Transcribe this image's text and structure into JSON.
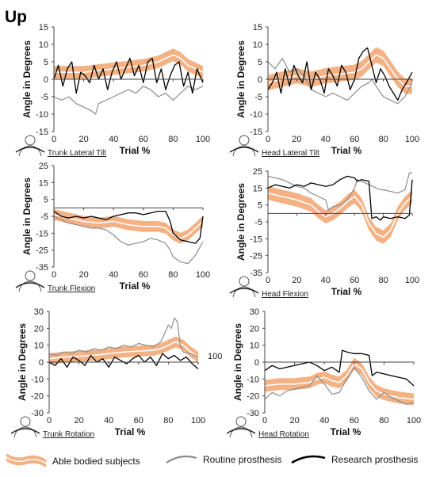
{
  "figure": {
    "title": "Up",
    "legend": [
      {
        "label": "Able bodied subjects",
        "style": "band",
        "color": "#f4b183",
        "center_color": "#ffffff"
      },
      {
        "label": "Routine prosthesis",
        "style": "line",
        "color": "#8c8c8c"
      },
      {
        "label": "Research prosthesis",
        "style": "line",
        "color": "#000000"
      }
    ]
  },
  "chart_data": [
    {
      "type": "line",
      "title": "Trunk Lateral Tilt",
      "xlabel": "Trial %",
      "ylabel": "Angle in Degrees",
      "xlim": [
        0,
        100
      ],
      "ylim": [
        -15,
        15
      ],
      "xticks": [
        0,
        20,
        40,
        60,
        80,
        100
      ],
      "yticks": [
        -15,
        -10,
        -5,
        0,
        5,
        10,
        15
      ],
      "xtick_labels": [
        "0",
        "20",
        "40",
        "60",
        "80",
        "100"
      ],
      "ytick_labels": [
        "-15",
        "-10",
        "-5",
        "0",
        "5",
        "10",
        "15"
      ],
      "grid": false,
      "icon": "trunk-tilt-icon",
      "band": {
        "x": [
          0,
          10,
          20,
          30,
          40,
          50,
          60,
          70,
          75,
          80,
          85,
          90,
          95,
          100
        ],
        "mean": [
          2,
          2,
          2,
          2.5,
          3,
          3.5,
          4,
          5,
          6,
          7,
          6,
          4,
          3,
          2
        ],
        "halfwidth": 1.8
      },
      "series": [
        {
          "name": "Routine prosthesis",
          "color": "#8c8c8c",
          "x": [
            0,
            5,
            10,
            15,
            20,
            25,
            28,
            30,
            35,
            40,
            45,
            50,
            55,
            60,
            65,
            70,
            75,
            80,
            85,
            90,
            95,
            100
          ],
          "y": [
            -5,
            -6,
            -5,
            -7,
            -8,
            -9,
            -10,
            -7,
            -6,
            -5,
            -4,
            -3,
            -4,
            -2,
            -3,
            -5,
            -4,
            -6,
            -4,
            -2,
            -3,
            -2
          ]
        },
        {
          "name": "Research prosthesis",
          "color": "#000000",
          "x": [
            0,
            3,
            6,
            9,
            12,
            15,
            18,
            21,
            24,
            27,
            30,
            33,
            36,
            39,
            42,
            45,
            48,
            51,
            54,
            57,
            60,
            63,
            66,
            69,
            72,
            75,
            78,
            81,
            84,
            87,
            90,
            93,
            96,
            100
          ],
          "y": [
            0,
            4,
            -2,
            3,
            5,
            -4,
            2,
            1,
            -1,
            4,
            0,
            3,
            -3,
            2,
            5,
            0,
            3,
            6,
            1,
            4,
            -1,
            5,
            6,
            -1,
            3,
            -3,
            1,
            4,
            5,
            -2,
            2,
            -4,
            3,
            -1
          ]
        }
      ]
    },
    {
      "type": "line",
      "title": "Head Lateral Tilt",
      "xlabel": "Trial %",
      "ylabel": "Angle in Degrees",
      "xlim": [
        0,
        100
      ],
      "ylim": [
        -15,
        15
      ],
      "xticks": [
        0,
        20,
        40,
        60,
        80,
        100
      ],
      "yticks": [
        -15,
        -10,
        -5,
        0,
        5,
        10,
        15
      ],
      "xtick_labels": [
        "0",
        "20",
        "40",
        "60",
        "80",
        "100"
      ],
      "ytick_labels": [
        "-15",
        "-10",
        "-5",
        "0",
        "5",
        "10",
        "15"
      ],
      "grid": false,
      "icon": "head-tilt-icon",
      "band": {
        "x": [
          0,
          10,
          20,
          30,
          40,
          50,
          60,
          65,
          70,
          75,
          80,
          85,
          90,
          95,
          100
        ],
        "mean": [
          -1,
          0,
          1,
          0,
          1,
          1.5,
          2,
          3,
          5,
          7,
          6,
          3,
          0,
          -2,
          -2
        ],
        "halfwidth": 2.2
      },
      "series": [
        {
          "name": "Routine prosthesis",
          "color": "#8c8c8c",
          "x": [
            0,
            5,
            10,
            15,
            20,
            25,
            30,
            35,
            40,
            45,
            50,
            55,
            60,
            65,
            70,
            72,
            75,
            80,
            85,
            90,
            95,
            100
          ],
          "y": [
            5,
            3,
            6,
            2,
            3,
            1,
            -3,
            -4,
            -5,
            -4,
            -5,
            -6,
            -4,
            -2,
            -1,
            0,
            -2,
            -5,
            -6,
            -7,
            -5,
            -1
          ]
        },
        {
          "name": "Research prosthesis",
          "color": "#000000",
          "x": [
            0,
            3,
            6,
            9,
            12,
            15,
            18,
            21,
            24,
            27,
            30,
            33,
            36,
            39,
            42,
            45,
            48,
            51,
            54,
            57,
            60,
            63,
            66,
            69,
            72,
            75,
            78,
            81,
            84,
            87,
            90,
            93,
            96,
            100
          ],
          "y": [
            -3,
            -1,
            2,
            -4,
            3,
            -2,
            4,
            1,
            -1,
            5,
            -3,
            2,
            0,
            -4,
            3,
            1,
            -2,
            4,
            2,
            -3,
            0,
            6,
            8,
            9,
            4,
            -1,
            3,
            1,
            -2,
            -4,
            -6,
            -3,
            -1,
            2
          ]
        }
      ]
    },
    {
      "type": "line",
      "title": "Trunk Flexion",
      "xlabel": "Trial %",
      "ylabel": "Angle in Degrees",
      "xlim": [
        0,
        100
      ],
      "ylim": [
        -35,
        25
      ],
      "xticks": [
        0,
        20,
        40,
        60,
        80,
        100
      ],
      "yticks": [
        -35,
        -25,
        -15,
        -5,
        5,
        15,
        25
      ],
      "xtick_labels": [
        "0",
        "20",
        "40",
        "60",
        "80",
        "100"
      ],
      "ytick_labels": [
        "-35",
        "-25",
        "-15",
        "-5",
        "5",
        "15",
        "25"
      ],
      "grid": false,
      "icon": "trunk-flexion-icon",
      "band": {
        "x": [
          0,
          10,
          20,
          30,
          40,
          50,
          60,
          70,
          75,
          80,
          85,
          90,
          95,
          100
        ],
        "mean": [
          -4,
          -6,
          -8,
          -9,
          -8,
          -10,
          -11,
          -11,
          -12,
          -16,
          -18,
          -16,
          -12,
          -8
        ],
        "halfwidth": 3.2
      },
      "series": [
        {
          "name": "Routine prosthesis",
          "color": "#8c8c8c",
          "x": [
            0,
            5,
            10,
            15,
            20,
            25,
            30,
            35,
            40,
            45,
            50,
            55,
            60,
            65,
            70,
            75,
            78,
            80,
            85,
            90,
            95,
            100
          ],
          "y": [
            -5,
            -7,
            -9,
            -10,
            -11,
            -12,
            -12,
            -13,
            -16,
            -20,
            -22,
            -21,
            -20,
            -18,
            -19,
            -21,
            -25,
            -29,
            -32,
            -33,
            -28,
            -20
          ]
        },
        {
          "name": "Research prosthesis",
          "color": "#000000",
          "x": [
            0,
            5,
            10,
            15,
            20,
            25,
            30,
            35,
            40,
            45,
            50,
            55,
            60,
            65,
            70,
            75,
            78,
            80,
            85,
            90,
            95,
            98,
            100
          ],
          "y": [
            -2,
            -5,
            -6,
            -5,
            -6,
            -5,
            -6,
            -7,
            -5,
            -4,
            -3,
            -3,
            -4,
            -3,
            -2,
            -2,
            -8,
            -15,
            -19,
            -20,
            -21,
            -18,
            -5
          ]
        }
      ]
    },
    {
      "type": "line",
      "title": "Head Flexion",
      "xlabel": "Trial %",
      "ylabel": "Angle in Degrees",
      "xlim": [
        0,
        100
      ],
      "ylim": [
        -35,
        25
      ],
      "xticks": [
        0,
        20,
        40,
        60,
        80,
        100
      ],
      "yticks": [
        -35,
        -25,
        -15,
        -5,
        5,
        15,
        25
      ],
      "xtick_labels": [
        "0",
        "20",
        "40",
        "60",
        "80",
        "100"
      ],
      "ytick_labels": [
        "-35",
        "-25",
        "-15",
        "-5",
        "5",
        "15",
        "25"
      ],
      "grid": false,
      "icon": "head-flexion-icon",
      "band": {
        "x": [
          0,
          10,
          20,
          30,
          35,
          40,
          45,
          50,
          55,
          60,
          65,
          70,
          75,
          80,
          85,
          90,
          95,
          100
        ],
        "mean": [
          12,
          10,
          8,
          5,
          1,
          -2,
          0,
          3,
          7,
          10,
          5,
          -6,
          -12,
          -14,
          -10,
          0,
          6,
          10
        ],
        "halfwidth": 4
      },
      "series": [
        {
          "name": "Routine prosthesis",
          "color": "#8c8c8c",
          "x": [
            0,
            5,
            10,
            15,
            20,
            25,
            30,
            35,
            40,
            42,
            45,
            50,
            55,
            60,
            62,
            65,
            70,
            75,
            78,
            80,
            85,
            90,
            95,
            98,
            100
          ],
          "y": [
            22,
            21,
            20,
            18,
            16,
            15,
            12,
            10,
            8,
            2,
            4,
            5,
            8,
            15,
            20,
            19,
            17,
            15,
            14,
            14,
            13,
            12,
            14,
            24,
            24
          ]
        },
        {
          "name": "Research prosthesis",
          "color": "#000000",
          "x": [
            0,
            5,
            10,
            15,
            20,
            25,
            30,
            35,
            40,
            45,
            50,
            55,
            60,
            62,
            65,
            70,
            72,
            75,
            78,
            80,
            85,
            90,
            95,
            98,
            100
          ],
          "y": [
            15,
            17,
            16,
            15,
            17,
            16,
            18,
            17,
            16,
            17,
            20,
            22,
            21,
            19,
            20,
            19,
            -3,
            -2,
            -4,
            -2,
            -3,
            -2,
            -3,
            -1,
            20
          ]
        }
      ]
    },
    {
      "type": "line",
      "title": "Trunk Rotation",
      "xlabel": "Trial %",
      "ylabel": "Angle in Degrees",
      "xlim": [
        0,
        100
      ],
      "ylim": [
        -30,
        30
      ],
      "xticks": [
        0,
        20,
        40,
        60,
        80,
        100
      ],
      "yticks": [
        -30,
        -20,
        -10,
        0,
        10,
        20,
        30
      ],
      "xtick_labels": [
        "0",
        "20",
        "40",
        "60",
        "80",
        "100"
      ],
      "ytick_labels": [
        "-30",
        "-20",
        "-10",
        "0",
        "10",
        "20",
        "30"
      ],
      "extra_labels": [
        "100"
      ],
      "grid": false,
      "icon": "trunk-rotation-icon",
      "band": {
        "x": [
          0,
          10,
          20,
          30,
          40,
          50,
          60,
          70,
          75,
          80,
          85,
          90,
          95,
          100
        ],
        "mean": [
          2,
          3,
          3.5,
          4,
          5,
          6,
          6.5,
          7,
          8,
          10,
          12,
          10,
          6,
          3
        ],
        "halfwidth": 3.2
      },
      "series": [
        {
          "name": "Routine prosthesis",
          "color": "#8c8c8c",
          "x": [
            0,
            5,
            10,
            15,
            20,
            25,
            30,
            35,
            40,
            45,
            50,
            55,
            60,
            65,
            70,
            75,
            78,
            80,
            82,
            84,
            86,
            88,
            90,
            95,
            100
          ],
          "y": [
            5,
            4,
            6,
            5,
            7,
            6,
            8,
            7,
            9,
            8,
            10,
            9,
            11,
            10,
            9,
            12,
            18,
            22,
            20,
            26,
            24,
            10,
            6,
            5,
            3
          ]
        },
        {
          "name": "Research prosthesis",
          "color": "#000000",
          "x": [
            0,
            4,
            8,
            12,
            16,
            20,
            24,
            28,
            32,
            36,
            40,
            44,
            48,
            52,
            56,
            60,
            64,
            68,
            72,
            76,
            80,
            84,
            88,
            92,
            96,
            100
          ],
          "y": [
            0,
            -2,
            2,
            -3,
            3,
            1,
            -2,
            4,
            0,
            2,
            -3,
            3,
            1,
            -1,
            2,
            4,
            0,
            3,
            -2,
            5,
            2,
            4,
            1,
            3,
            -1,
            -4
          ]
        }
      ]
    },
    {
      "type": "line",
      "title": "Head Rotation",
      "xlabel": "Trial %",
      "ylabel": "Angle in Degrees",
      "xlim": [
        0,
        100
      ],
      "ylim": [
        -30,
        30
      ],
      "xticks": [
        0,
        20,
        40,
        60,
        80,
        100
      ],
      "yticks": [
        -30,
        -20,
        -10,
        0,
        10,
        20,
        30
      ],
      "xtick_labels": [
        "0",
        "20",
        "40",
        "60",
        "80",
        "100"
      ],
      "ytick_labels": [
        "-30",
        "-20",
        "-10",
        "0",
        "10",
        "20",
        "30"
      ],
      "grid": false,
      "icon": "head-rotation-icon",
      "band": {
        "x": [
          0,
          10,
          20,
          30,
          35,
          40,
          45,
          50,
          55,
          60,
          65,
          70,
          75,
          80,
          90,
          100
        ],
        "mean": [
          -14,
          -13,
          -13,
          -12,
          -10,
          -9,
          -11,
          -12,
          -8,
          -1,
          -4,
          -12,
          -17,
          -19,
          -21,
          -22
        ],
        "halfwidth": 3.5
      },
      "series": [
        {
          "name": "Routine prosthesis",
          "color": "#8c8c8c",
          "x": [
            0,
            5,
            10,
            15,
            20,
            25,
            30,
            35,
            40,
            45,
            50,
            55,
            60,
            65,
            70,
            75,
            80,
            85,
            90,
            95,
            100
          ],
          "y": [
            -22,
            -18,
            -20,
            -17,
            -16,
            -15,
            -14,
            -8,
            -13,
            -19,
            -18,
            -10,
            -3,
            -9,
            -17,
            -22,
            -18,
            -21,
            -23,
            -25,
            -24
          ]
        },
        {
          "name": "Research prosthesis",
          "color": "#000000",
          "x": [
            0,
            5,
            10,
            15,
            20,
            25,
            30,
            35,
            40,
            45,
            50,
            52,
            55,
            60,
            65,
            70,
            72,
            75,
            80,
            85,
            90,
            95,
            100
          ],
          "y": [
            -5,
            -2,
            -4,
            -3,
            -2,
            -1,
            0,
            -2,
            -5,
            -3,
            -6,
            7,
            6,
            5,
            5,
            4,
            -8,
            -6,
            -7,
            -8,
            -9,
            -10,
            -14
          ]
        }
      ]
    }
  ]
}
